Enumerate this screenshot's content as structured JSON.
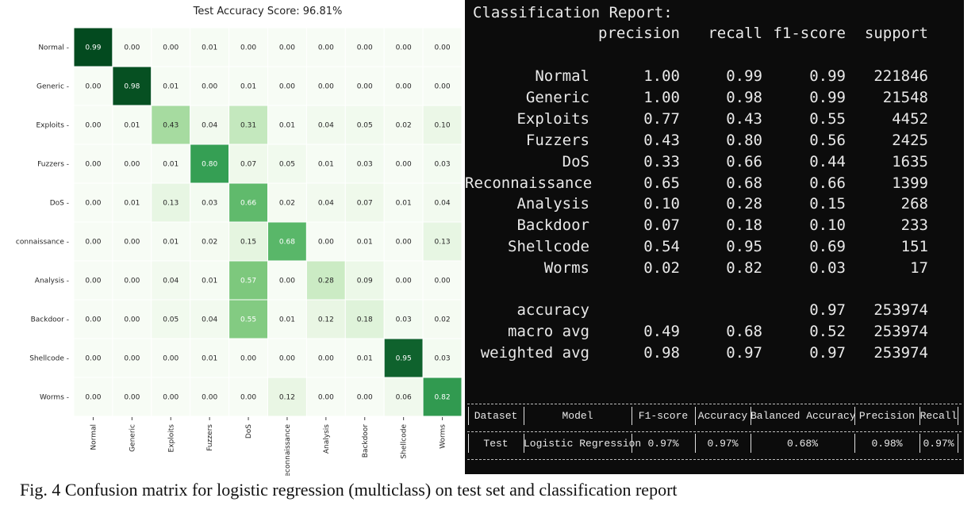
{
  "heatmap": {
    "title": "Test Accuracy Score: 96.81%",
    "chart_data": {
      "type": "heatmap",
      "title": "Test Accuracy Score: 96.81%",
      "row_labels": [
        "Normal",
        "Generic",
        "Exploits",
        "Fuzzers",
        "DoS",
        "connaissance",
        "Analysis",
        "Backdoor",
        "Shellcode",
        "Worms"
      ],
      "col_labels": [
        "Normal",
        "Generic",
        "Exploits",
        "Fuzzers",
        "DoS",
        "Reconnaissance",
        "Analysis",
        "Backdoor",
        "Shellcode",
        "Worms"
      ],
      "values": [
        [
          "0.99",
          "0.00",
          "0.00",
          "0.01",
          "0.00",
          "0.00",
          "0.00",
          "0.00",
          "0.00",
          "0.00"
        ],
        [
          "0.00",
          "0.98",
          "0.01",
          "0.00",
          "0.01",
          "0.00",
          "0.00",
          "0.00",
          "0.00",
          "0.00"
        ],
        [
          "0.00",
          "0.01",
          "0.43",
          "0.04",
          "0.31",
          "0.01",
          "0.04",
          "0.05",
          "0.02",
          "0.10"
        ],
        [
          "0.00",
          "0.00",
          "0.01",
          "0.80",
          "0.07",
          "0.05",
          "0.01",
          "0.03",
          "0.00",
          "0.03"
        ],
        [
          "0.00",
          "0.01",
          "0.13",
          "0.03",
          "0.66",
          "0.02",
          "0.04",
          "0.07",
          "0.01",
          "0.04"
        ],
        [
          "0.00",
          "0.00",
          "0.01",
          "0.02",
          "0.15",
          "0.68",
          "0.00",
          "0.01",
          "0.00",
          "0.13"
        ],
        [
          "0.00",
          "0.00",
          "0.04",
          "0.01",
          "0.57",
          "0.00",
          "0.28",
          "0.09",
          "0.00",
          "0.00"
        ],
        [
          "0.00",
          "0.00",
          "0.05",
          "0.04",
          "0.55",
          "0.01",
          "0.12",
          "0.18",
          "0.03",
          "0.02"
        ],
        [
          "0.00",
          "0.00",
          "0.00",
          "0.01",
          "0.00",
          "0.00",
          "0.00",
          "0.01",
          "0.95",
          "0.03"
        ],
        [
          "0.00",
          "0.00",
          "0.00",
          "0.00",
          "0.00",
          "0.12",
          "0.00",
          "0.00",
          "0.06",
          "0.82"
        ]
      ],
      "colormap": "Greens",
      "color_low": "#f7fcf5",
      "color_high": "#00441b"
    }
  },
  "report": {
    "title": "Classification Report:",
    "headers": [
      "precision",
      "recall",
      "f1-score",
      "support"
    ],
    "rows": [
      {
        "label": "Normal",
        "precision": "1.00",
        "recall": "0.99",
        "f1": "0.99",
        "support": "221846"
      },
      {
        "label": "Generic",
        "precision": "1.00",
        "recall": "0.98",
        "f1": "0.99",
        "support": "21548"
      },
      {
        "label": "Exploits",
        "precision": "0.77",
        "recall": "0.43",
        "f1": "0.55",
        "support": "4452"
      },
      {
        "label": "Fuzzers",
        "precision": "0.43",
        "recall": "0.80",
        "f1": "0.56",
        "support": "2425"
      },
      {
        "label": "DoS",
        "precision": "0.33",
        "recall": "0.66",
        "f1": "0.44",
        "support": "1635"
      },
      {
        "label": "Reconnaissance",
        "precision": "0.65",
        "recall": "0.68",
        "f1": "0.66",
        "support": "1399"
      },
      {
        "label": "Analysis",
        "precision": "0.10",
        "recall": "0.28",
        "f1": "0.15",
        "support": "268"
      },
      {
        "label": "Backdoor",
        "precision": "0.07",
        "recall": "0.18",
        "f1": "0.10",
        "support": "233"
      },
      {
        "label": "Shellcode",
        "precision": "0.54",
        "recall": "0.95",
        "f1": "0.69",
        "support": "151"
      },
      {
        "label": "Worms",
        "precision": "0.02",
        "recall": "0.82",
        "f1": "0.03",
        "support": "17"
      }
    ],
    "summary": [
      {
        "label": "accuracy",
        "precision": "",
        "recall": "",
        "f1": "0.97",
        "support": "253974"
      },
      {
        "label": "macro avg",
        "precision": "0.49",
        "recall": "0.68",
        "f1": "0.52",
        "support": "253974"
      },
      {
        "label": "weighted avg",
        "precision": "0.98",
        "recall": "0.97",
        "f1": "0.97",
        "support": "253974"
      }
    ],
    "table": {
      "headers": [
        "Dataset",
        "Model",
        "F1-score",
        "Accuracy",
        "Balanced Accuracy",
        "Precision",
        "Recall"
      ],
      "row": [
        "Test",
        "Logistic Regression",
        "0.97%",
        "0.97%",
        "0.68%",
        "0.98%",
        "0.97%"
      ]
    }
  },
  "caption": "Fig. 4 Confusion matrix for logistic regression (multiclass) on test set and classification report"
}
